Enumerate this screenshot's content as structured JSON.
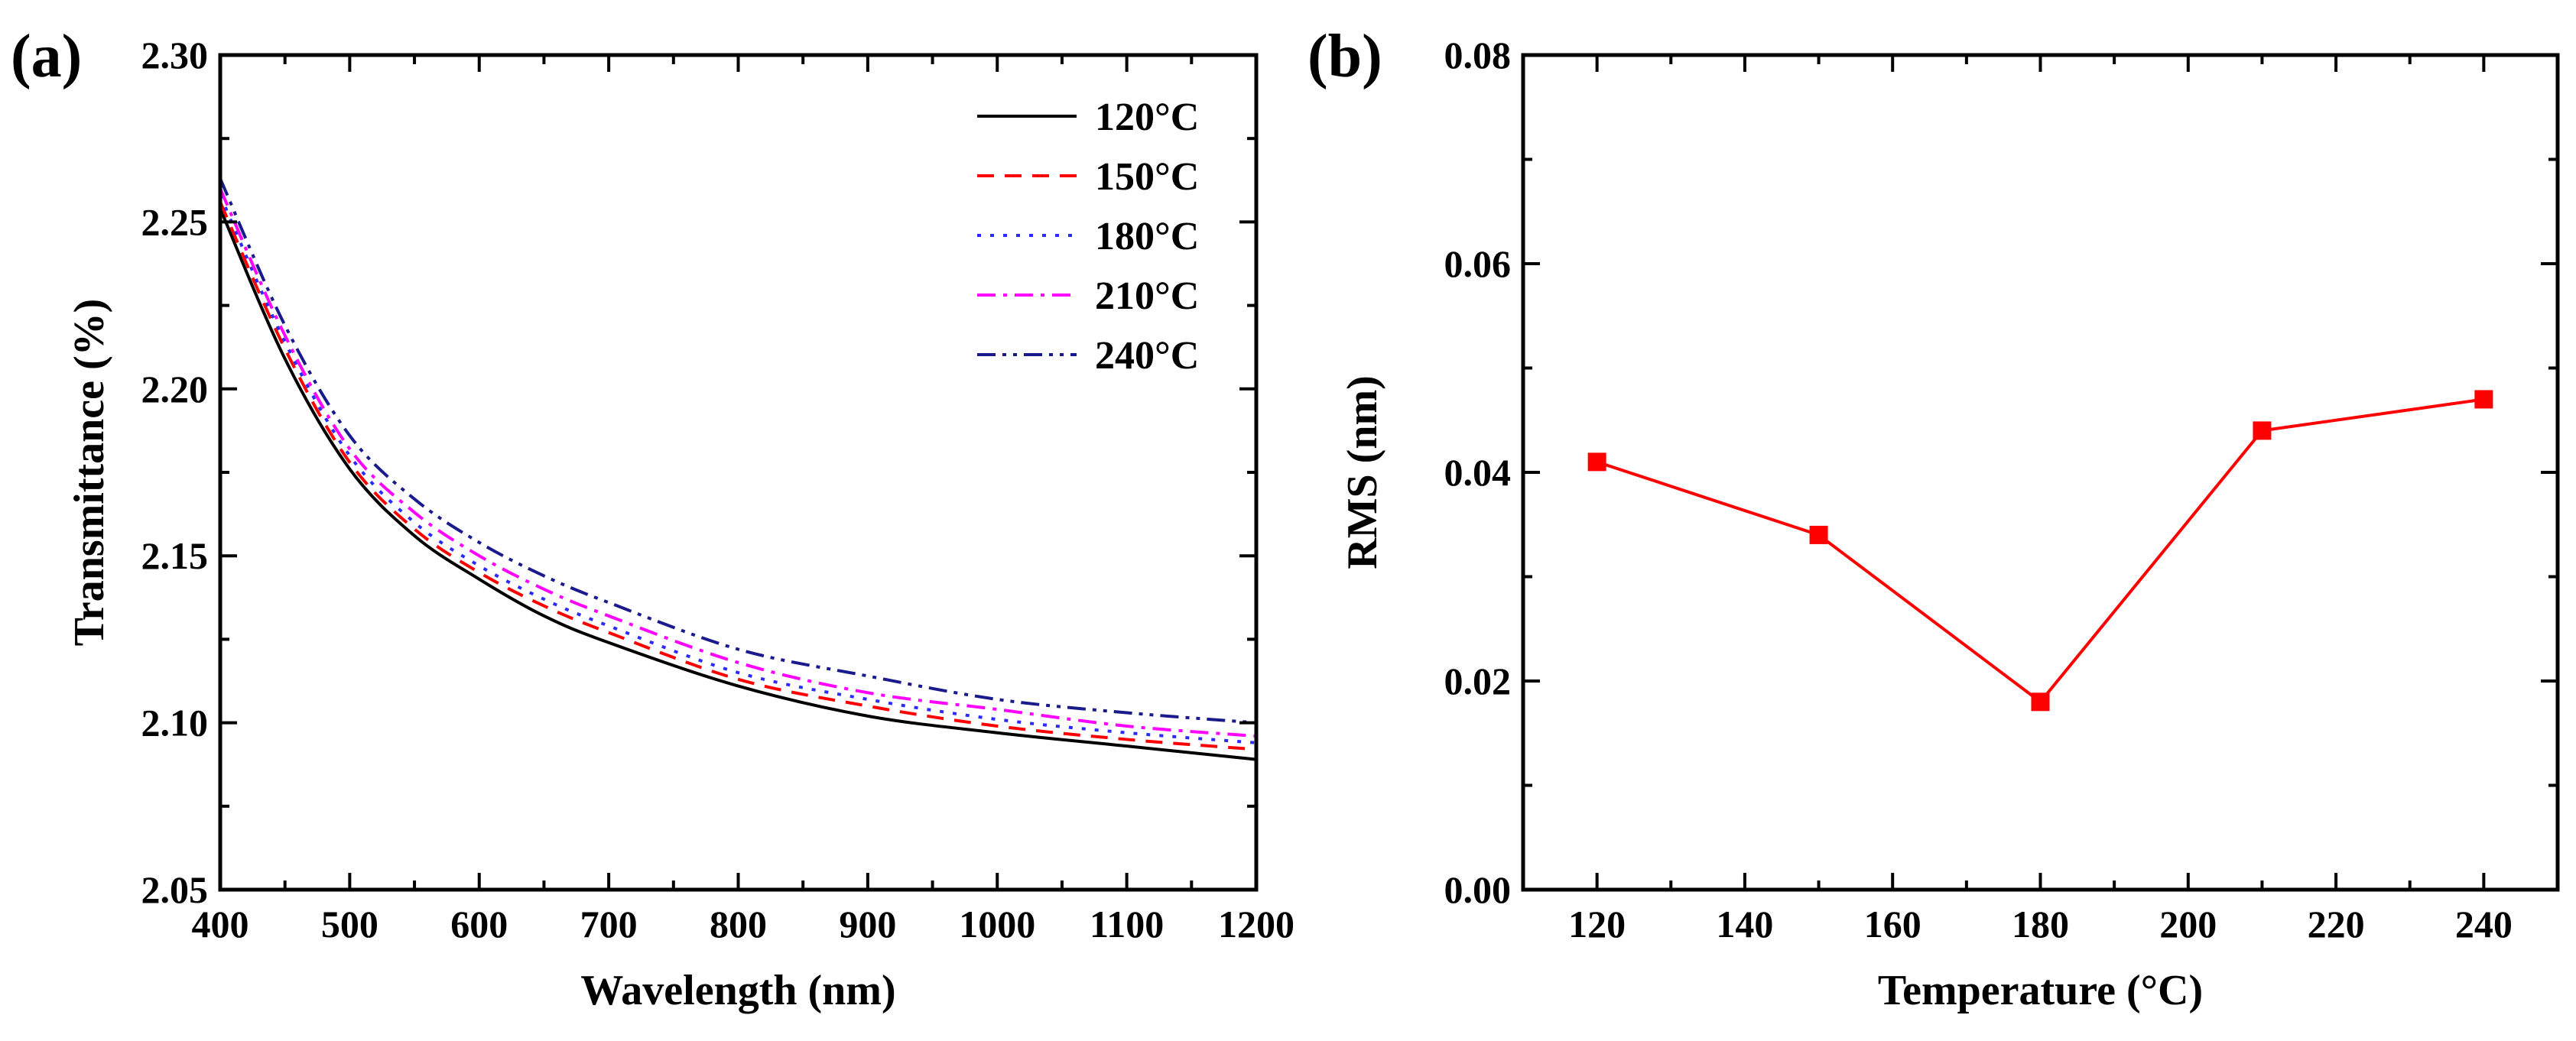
{
  "chart_data": [
    {
      "panel_label": "(a)",
      "type": "line",
      "xlabel": "Wavelength (nm)",
      "ylabel": "Transmittance (%)",
      "xlim": [
        400,
        1200
      ],
      "ylim": [
        2.05,
        2.3
      ],
      "x_ticks": [
        400,
        500,
        600,
        700,
        800,
        900,
        1000,
        1100,
        1200
      ],
      "x_tick_labels": [
        "400",
        "500",
        "600",
        "700",
        "800",
        "900",
        "1000",
        "1100",
        "1200"
      ],
      "y_ticks": [
        2.05,
        2.1,
        2.15,
        2.2,
        2.25,
        2.3
      ],
      "y_tick_labels": [
        "2.05",
        "2.10",
        "2.15",
        "2.20",
        "2.25",
        "2.30"
      ],
      "legend_position": "top-right",
      "x": [
        400,
        450,
        500,
        550,
        600,
        650,
        700,
        800,
        900,
        1000,
        1100,
        1200
      ],
      "series": [
        {
          "name": "120°C",
          "color": "#000000",
          "dash": "solid",
          "values": [
            2.254,
            2.209,
            2.176,
            2.156,
            2.143,
            2.132,
            2.124,
            2.111,
            2.102,
            2.097,
            2.093,
            2.089
          ]
        },
        {
          "name": "150°C",
          "color": "#ff0000",
          "dash": "dash",
          "values": [
            2.256,
            2.212,
            2.178,
            2.158,
            2.145,
            2.135,
            2.127,
            2.113,
            2.105,
            2.099,
            2.095,
            2.092
          ]
        },
        {
          "name": "180°C",
          "color": "#2b2bff",
          "dash": "dot",
          "values": [
            2.258,
            2.214,
            2.18,
            2.16,
            2.147,
            2.137,
            2.129,
            2.115,
            2.107,
            2.101,
            2.097,
            2.094
          ]
        },
        {
          "name": "210°C",
          "color": "#ff00ff",
          "dash": "dashdot",
          "values": [
            2.26,
            2.216,
            2.182,
            2.163,
            2.15,
            2.14,
            2.132,
            2.118,
            2.109,
            2.104,
            2.099,
            2.096
          ]
        },
        {
          "name": "240°C",
          "color": "#1a1a8c",
          "dash": "dashdotdot",
          "values": [
            2.263,
            2.219,
            2.186,
            2.167,
            2.154,
            2.144,
            2.136,
            2.122,
            2.114,
            2.107,
            2.103,
            2.1
          ]
        }
      ]
    },
    {
      "panel_label": "(b)",
      "type": "line",
      "xlabel": "Temperature (°C)",
      "ylabel": "RMS (nm)",
      "xlim": [
        110,
        250
      ],
      "ylim": [
        0,
        0.08
      ],
      "x_ticks": [
        120,
        140,
        160,
        180,
        200,
        220,
        240
      ],
      "x_tick_labels": [
        "120",
        "140",
        "160",
        "180",
        "200",
        "220",
        "240"
      ],
      "y_ticks": [
        0,
        0.02,
        0.04,
        0.06,
        0.08
      ],
      "y_tick_labels": [
        "0.00",
        "0.02",
        "0.04",
        "0.06",
        "0.08"
      ],
      "x": [
        120,
        150,
        180,
        210,
        240
      ],
      "series": [
        {
          "name": "RMS",
          "color": "#ff0000",
          "marker": "square",
          "values": [
            0.041,
            0.034,
            0.018,
            0.044,
            0.047
          ]
        }
      ]
    }
  ]
}
